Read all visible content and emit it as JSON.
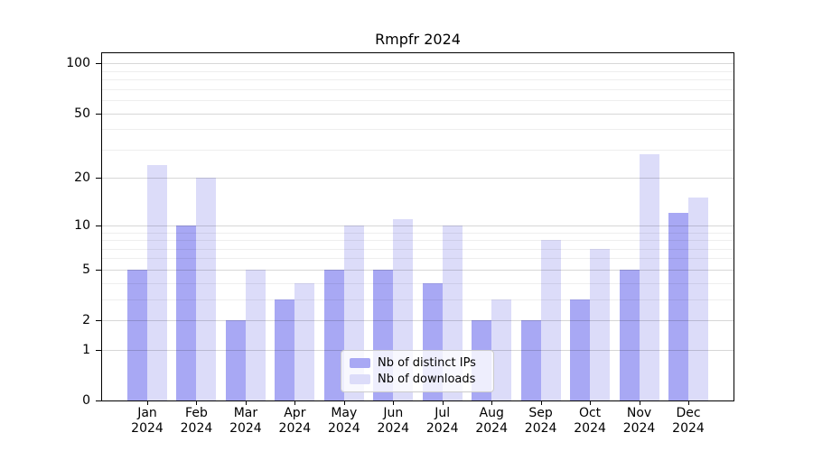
{
  "chart_data": {
    "type": "bar",
    "title": "Rmpfr 2024",
    "categories": [
      "Jan",
      "Feb",
      "Mar",
      "Apr",
      "May",
      "Jun",
      "Jul",
      "Aug",
      "Sep",
      "Oct",
      "Nov",
      "Dec"
    ],
    "x_year": "2024",
    "series": [
      {
        "name": "Nb of distinct IPs",
        "color": "#a8a8f4",
        "values": [
          5,
          10,
          2,
          3,
          5,
          5,
          4,
          2,
          2,
          3,
          5,
          12
        ]
      },
      {
        "name": "Nb of downloads",
        "color": "#dcdcf9",
        "values": [
          24,
          20,
          5,
          4,
          10,
          11,
          10,
          3,
          8,
          7,
          28,
          15
        ]
      }
    ],
    "xlabel": "",
    "ylabel": "",
    "yscale": "log1p",
    "ylim": [
      0,
      115
    ],
    "y_major_ticks": [
      0,
      1,
      2,
      5,
      10,
      20,
      50,
      100
    ],
    "y_minor_ticks": [
      3,
      4,
      6,
      7,
      8,
      9,
      30,
      40,
      60,
      70,
      80,
      90
    ],
    "grid": "on",
    "legend_position": "lower center",
    "grid_major_color": "#d8d8d8",
    "grid_minor_color": "#ededed",
    "axis_color": "#000000",
    "background_color": "#ffffff"
  }
}
